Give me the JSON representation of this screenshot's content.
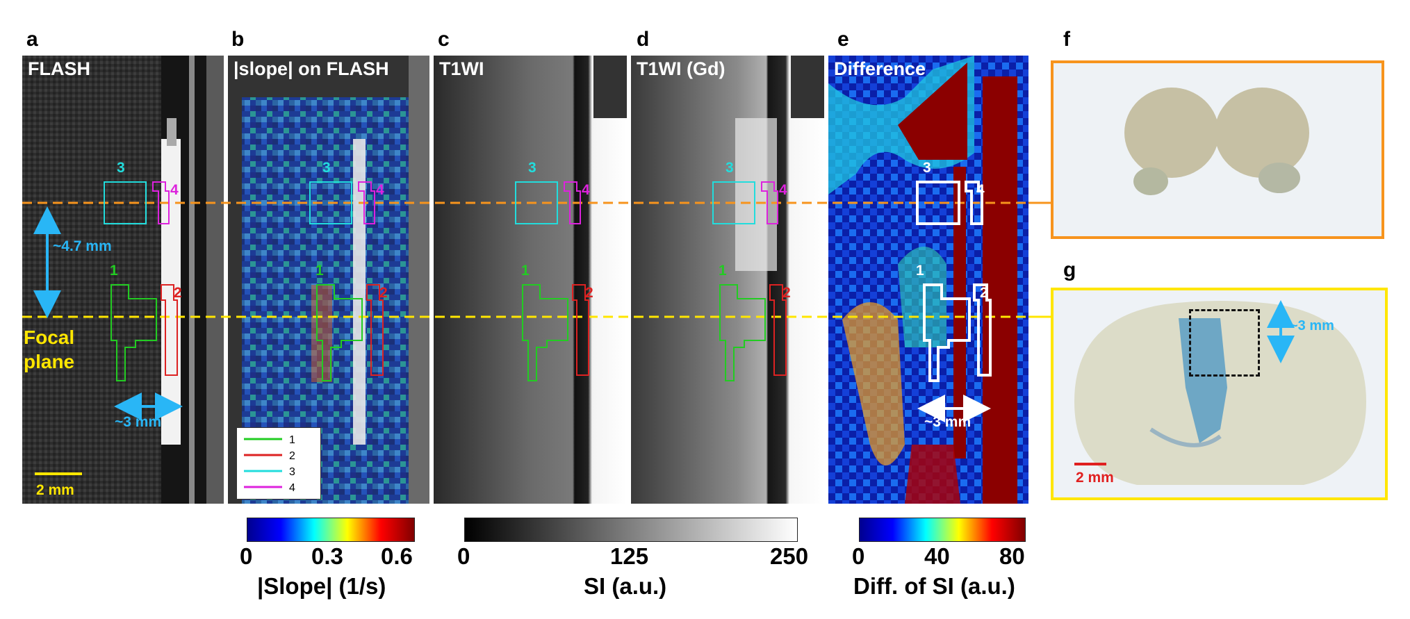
{
  "panels": {
    "a": {
      "letter": "a",
      "title": "FLASH"
    },
    "b": {
      "letter": "b",
      "title": "|slope| on FLASH"
    },
    "c": {
      "letter": "c",
      "title": "T1WI"
    },
    "d": {
      "letter": "d",
      "title": "T1WI (Gd)"
    },
    "e": {
      "letter": "e",
      "title": "Difference"
    },
    "f": {
      "letter": "f"
    },
    "g": {
      "letter": "g"
    }
  },
  "annotations": {
    "dist_47": "~4.7 mm",
    "dist_3": "~3 mm",
    "focal_plane_1": "Focal",
    "focal_plane_2": "plane",
    "scale_2mm": "2 mm",
    "roi_labels": [
      "1",
      "2",
      "3",
      "4"
    ]
  },
  "legend": {
    "items": [
      {
        "label": "1",
        "color": "#22cc22"
      },
      {
        "label": "2",
        "color": "#dd2222"
      },
      {
        "label": "3",
        "color": "#22dddd"
      },
      {
        "label": "4",
        "color": "#dd22dd"
      }
    ]
  },
  "colorbars": {
    "slope": {
      "ticks": [
        "0",
        "0.3",
        "0.6"
      ],
      "label": "|Slope| (1/s)",
      "scheme": "jet"
    },
    "si": {
      "ticks": [
        "0",
        "125",
        "250"
      ],
      "label": "SI (a.u.)",
      "scheme": "gray"
    },
    "diff": {
      "ticks": [
        "0",
        "40",
        "80"
      ],
      "label": "Diff. of SI (a.u.)",
      "scheme": "jet"
    }
  },
  "colors": {
    "orange_line": "#f7941d",
    "yellow_line": "#ffe600",
    "cyan_annot": "#29b6f6",
    "yellow_text": "#ffe600",
    "red_scale": "#e02020"
  }
}
